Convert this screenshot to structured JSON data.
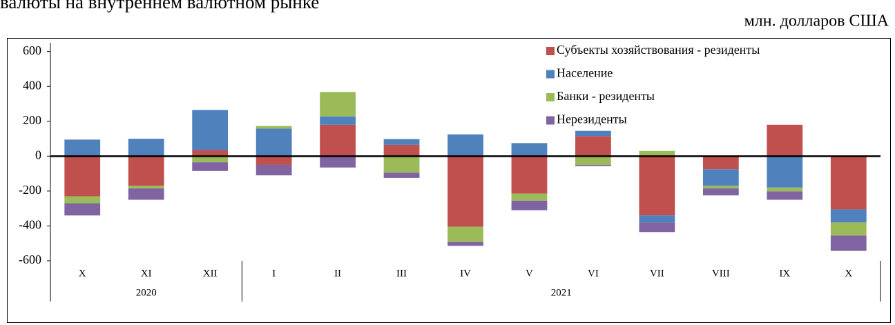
{
  "chart_data": {
    "type": "stacked_bar",
    "title": "валюты на внутреннем валютном рынке",
    "unit_label": "млн. долларов США",
    "categories": [
      "X",
      "XI",
      "XII",
      "I",
      "II",
      "III",
      "IV",
      "V",
      "VI",
      "VII",
      "VIII",
      "IX",
      "X"
    ],
    "groups": [
      {
        "label": "2020",
        "count": 3
      },
      {
        "label": "2021",
        "count": 10
      }
    ],
    "series": [
      {
        "name": "Субъекты хозяйствования - резиденты",
        "color": "#c0504d",
        "values": [
          -230,
          -170,
          35,
          -50,
          180,
          65,
          -405,
          -215,
          115,
          -340,
          -75,
          180,
          -305
        ]
      },
      {
        "name": "Население",
        "color": "#4f81bd",
        "values": [
          95,
          100,
          230,
          158,
          48,
          33,
          125,
          75,
          30,
          -40,
          -95,
          -180,
          -75
        ]
      },
      {
        "name": "Банки - резиденты",
        "color": "#9bbb59",
        "values": [
          -40,
          -15,
          -35,
          15,
          140,
          -95,
          -87,
          -40,
          -50,
          30,
          -15,
          -22,
          -75
        ]
      },
      {
        "name": "Нерезиденты",
        "color": "#8064a2",
        "values": [
          -70,
          -65,
          -50,
          -60,
          -65,
          -30,
          -22,
          -55,
          -7,
          -55,
          -40,
          -48,
          -88
        ]
      }
    ],
    "ylim": [
      -600,
      650
    ],
    "yticks": [
      -600,
      -400,
      -200,
      0,
      200,
      400,
      600
    ],
    "legend": "upper right"
  }
}
